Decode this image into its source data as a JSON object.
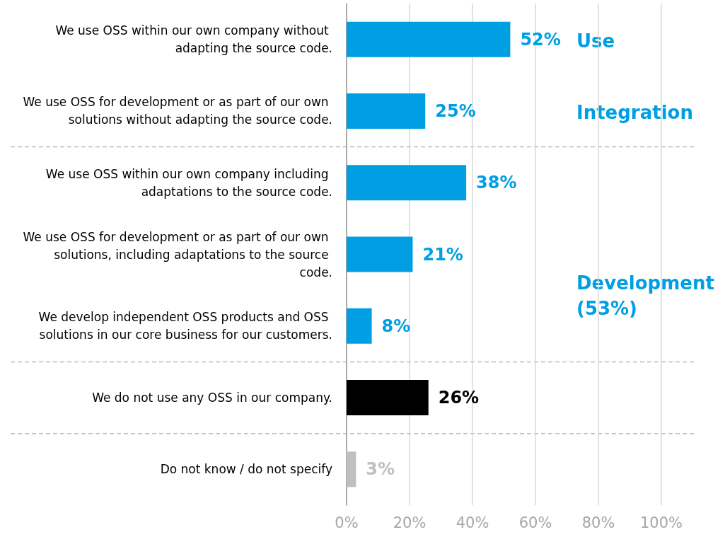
{
  "chart_data": {
    "type": "bar",
    "orientation": "horizontal",
    "categories": [
      "We use OSS within our own company without adapting the source code.",
      "We use OSS for development or as part of our own solutions without adapting the source code.",
      "We use OSS within our own company including adaptations to the source code.",
      "We use OSS for development or as part of our own solutions, including adaptations to the source code.",
      "We develop independent OSS products and OSS solutions in our core business for our customers.",
      "We do not use any OSS in our company.",
      "Do not know / do not specify"
    ],
    "values": [
      52,
      25,
      38,
      21,
      8,
      26,
      3
    ],
    "colors": [
      "#009fe3",
      "#009fe3",
      "#009fe3",
      "#009fe3",
      "#009fe3",
      "#000000",
      "#bfbfbf"
    ],
    "value_labels": [
      "52%",
      "25%",
      "38%",
      "21%",
      "8%",
      "26%",
      "3%"
    ],
    "xlim": [
      0,
      100
    ],
    "xticks": [
      {
        "value": 0,
        "label": "0%"
      },
      {
        "value": 20,
        "label": "20%"
      },
      {
        "value": 40,
        "label": "40%"
      },
      {
        "value": 60,
        "label": "60%"
      },
      {
        "value": 80,
        "label": "80%"
      },
      {
        "value": 100,
        "label": "100%"
      }
    ],
    "grid": "x",
    "annotations": [
      "Use",
      "Integration",
      "Development (53%)"
    ]
  }
}
